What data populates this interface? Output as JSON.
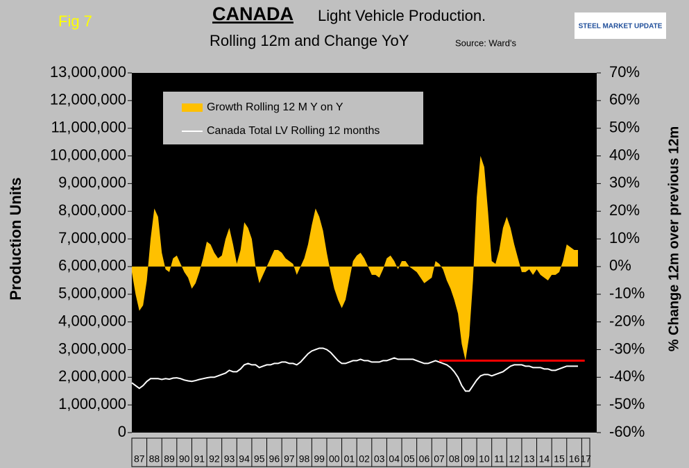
{
  "chart_data": {
    "type": "area_line",
    "figure_label": "Fig 7",
    "title_bold": "CANADA",
    "title": "Light Vehicle Production.",
    "subtitle": "Rolling 12m and Change YoY",
    "source": "Source: Ward's",
    "logo": "STEEL MARKET UPDATE",
    "ylabel": "Production Units",
    "y2label": "% Change 12m over previous 12m",
    "x": [
      1987,
      1987.25,
      1987.5,
      1987.75,
      1988,
      1988.25,
      1988.5,
      1988.75,
      1989,
      1989.25,
      1989.5,
      1989.75,
      1990,
      1990.25,
      1990.5,
      1990.75,
      1991,
      1991.25,
      1991.5,
      1991.75,
      1992,
      1992.25,
      1992.5,
      1992.75,
      1993,
      1993.25,
      1993.5,
      1993.75,
      1994,
      1994.25,
      1994.5,
      1994.75,
      1995,
      1995.25,
      1995.5,
      1995.75,
      1996,
      1996.25,
      1996.5,
      1996.75,
      1997,
      1997.25,
      1997.5,
      1997.75,
      1998,
      1998.25,
      1998.5,
      1998.75,
      1999,
      1999.25,
      1999.5,
      1999.75,
      2000,
      2000.25,
      2000.5,
      2000.75,
      2001,
      2001.25,
      2001.5,
      2001.75,
      2002,
      2002.25,
      2002.5,
      2002.75,
      2003,
      2003.25,
      2003.5,
      2003.75,
      2004,
      2004.25,
      2004.5,
      2004.75,
      2005,
      2005.25,
      2005.5,
      2005.75,
      2006,
      2006.25,
      2006.5,
      2006.75,
      2007,
      2007.25,
      2007.5,
      2007.75,
      2008,
      2008.25,
      2008.5,
      2008.75,
      2009,
      2009.25,
      2009.5,
      2009.75,
      2010,
      2010.25,
      2010.5,
      2010.75,
      2011,
      2011.25,
      2011.5,
      2011.75,
      2012,
      2012.25,
      2012.5,
      2012.75,
      2013,
      2013.25,
      2013.5,
      2013.75,
      2014,
      2014.25,
      2014.5,
      2014.75,
      2015,
      2015.25,
      2015.5,
      2015.75,
      2016,
      2016.25,
      2016.5,
      2016.75
    ],
    "series": [
      {
        "name": "Growth Rolling 12 M Y on Y",
        "color": "#ffc000",
        "axis": "y2",
        "kind": "area",
        "values": [
          -2,
          -10,
          -16,
          -14,
          -5,
          10,
          21,
          18,
          5,
          -1,
          -2,
          3,
          4,
          1,
          -2,
          -4,
          -8,
          -6,
          -2,
          3,
          9,
          8,
          5,
          3,
          4,
          10,
          14,
          8,
          1,
          6,
          16,
          14,
          10,
          0,
          -6,
          -3,
          0,
          3,
          6,
          6,
          5,
          3,
          2,
          1,
          -3,
          0,
          3,
          8,
          15,
          21,
          18,
          13,
          5,
          -2,
          -8,
          -12,
          -15,
          -12,
          -5,
          2,
          4,
          5,
          3,
          0,
          -3,
          -3,
          -4,
          -1,
          3,
          4,
          2,
          -1,
          2,
          2,
          0,
          -1,
          -2,
          -4,
          -6,
          -5,
          -4,
          2,
          1,
          -1,
          -5,
          -8,
          -12,
          -17,
          -28,
          -34,
          -25,
          -5,
          25,
          40,
          36,
          20,
          2,
          1,
          6,
          14,
          18,
          14,
          8,
          3,
          -2,
          -2,
          -1,
          -3,
          -1,
          -3,
          -4,
          -5,
          -3,
          -3,
          -2,
          2,
          8,
          7,
          6,
          6
        ]
      },
      {
        "name": "Canada Total LV Rolling 12 months",
        "color": "#ffffff",
        "axis": "y",
        "kind": "line",
        "values": [
          1800000,
          1700000,
          1600000,
          1700000,
          1850000,
          1950000,
          1950000,
          1950000,
          1920000,
          1950000,
          1930000,
          1970000,
          1980000,
          1950000,
          1900000,
          1870000,
          1850000,
          1880000,
          1920000,
          1950000,
          1980000,
          2000000,
          2000000,
          2050000,
          2100000,
          2150000,
          2250000,
          2200000,
          2200000,
          2300000,
          2450000,
          2500000,
          2450000,
          2450000,
          2350000,
          2400000,
          2450000,
          2450000,
          2500000,
          2500000,
          2550000,
          2550000,
          2500000,
          2500000,
          2450000,
          2550000,
          2700000,
          2850000,
          2950000,
          3000000,
          3050000,
          3050000,
          3000000,
          2900000,
          2750000,
          2600000,
          2500000,
          2500000,
          2550000,
          2600000,
          2600000,
          2650000,
          2600000,
          2600000,
          2550000,
          2550000,
          2550000,
          2600000,
          2600000,
          2650000,
          2700000,
          2650000,
          2650000,
          2650000,
          2650000,
          2650000,
          2600000,
          2550000,
          2500000,
          2500000,
          2550000,
          2600000,
          2550000,
          2500000,
          2450000,
          2350000,
          2200000,
          2000000,
          1700000,
          1500000,
          1500000,
          1700000,
          1900000,
          2050000,
          2100000,
          2100000,
          2050000,
          2100000,
          2150000,
          2200000,
          2300000,
          2400000,
          2450000,
          2450000,
          2450000,
          2400000,
          2400000,
          2350000,
          2350000,
          2350000,
          2300000,
          2300000,
          2250000,
          2250000,
          2300000,
          2350000,
          2400000,
          2400000,
          2400000,
          2400000
        ]
      }
    ],
    "reference_line": {
      "x": [
        2007.5,
        2017.2
      ],
      "y": 2600000,
      "color": "#ff0000"
    },
    "xlim": [
      1987,
      2018
    ],
    "xticks": [
      {
        "value": 1987,
        "label": "87"
      },
      {
        "value": 1988,
        "label": "88"
      },
      {
        "value": 1989,
        "label": "89"
      },
      {
        "value": 1990,
        "label": "90"
      },
      {
        "value": 1991,
        "label": "91"
      },
      {
        "value": 1992,
        "label": "92"
      },
      {
        "value": 1993,
        "label": "93"
      },
      {
        "value": 1994,
        "label": "94"
      },
      {
        "value": 1995,
        "label": "95"
      },
      {
        "value": 1996,
        "label": "96"
      },
      {
        "value": 1997,
        "label": "97"
      },
      {
        "value": 1998,
        "label": "98"
      },
      {
        "value": 1999,
        "label": "99"
      },
      {
        "value": 2000,
        "label": "00"
      },
      {
        "value": 2001,
        "label": "01"
      },
      {
        "value": 2002,
        "label": "02"
      },
      {
        "value": 2003,
        "label": "03"
      },
      {
        "value": 2004,
        "label": "04"
      },
      {
        "value": 2005,
        "label": "05"
      },
      {
        "value": 2006,
        "label": "06"
      },
      {
        "value": 2007,
        "label": "07"
      },
      {
        "value": 2008,
        "label": "08"
      },
      {
        "value": 2009,
        "label": "09"
      },
      {
        "value": 2010,
        "label": "10"
      },
      {
        "value": 2011,
        "label": "11"
      },
      {
        "value": 2012,
        "label": "12"
      },
      {
        "value": 2013,
        "label": "13"
      },
      {
        "value": 2014,
        "label": "14"
      },
      {
        "value": 2015,
        "label": "15"
      },
      {
        "value": 2016,
        "label": "16"
      },
      {
        "value": 2017,
        "label": "17"
      }
    ],
    "ylim": [
      0,
      13000000
    ],
    "yticks": [
      0,
      {
        "value": 1000000,
        "label": "1,000,000"
      },
      {
        "value": 2000000,
        "label": "2,000,000"
      },
      {
        "value": 3000000,
        "label": "3,000,000"
      },
      {
        "value": 4000000,
        "label": "4,000,000"
      },
      {
        "value": 5000000,
        "label": "5,000,000"
      },
      {
        "value": 6000000,
        "label": "6,000,000"
      },
      {
        "value": 7000000,
        "label": "7,000,000"
      },
      {
        "value": 8000000,
        "label": "8,000,000"
      },
      {
        "value": 9000000,
        "label": "9,000,000"
      },
      {
        "value": 10000000,
        "label": "10,000,000"
      },
      {
        "value": 11000000,
        "label": "11,000,000"
      },
      {
        "value": 12000000,
        "label": "12,000,000"
      },
      {
        "value": 13000000,
        "label": "13,000,000"
      }
    ],
    "y2lim": [
      -60,
      70
    ],
    "y2ticks": [
      {
        "value": -60,
        "label": "-60%"
      },
      {
        "value": -50,
        "label": "-50%"
      },
      {
        "value": -40,
        "label": "-40%"
      },
      {
        "value": -30,
        "label": "-30%"
      },
      {
        "value": -20,
        "label": "-20%"
      },
      {
        "value": -10,
        "label": "-10%"
      },
      {
        "value": 0,
        "label": "0%"
      },
      {
        "value": 10,
        "label": "10%"
      },
      {
        "value": 20,
        "label": "20%"
      },
      {
        "value": 30,
        "label": "30%"
      },
      {
        "value": 40,
        "label": "40%"
      },
      {
        "value": 50,
        "label": "50%"
      },
      {
        "value": 60,
        "label": "60%"
      },
      {
        "value": 70,
        "label": "70%"
      }
    ],
    "plot_background": "#000000",
    "legend": "upper left"
  }
}
